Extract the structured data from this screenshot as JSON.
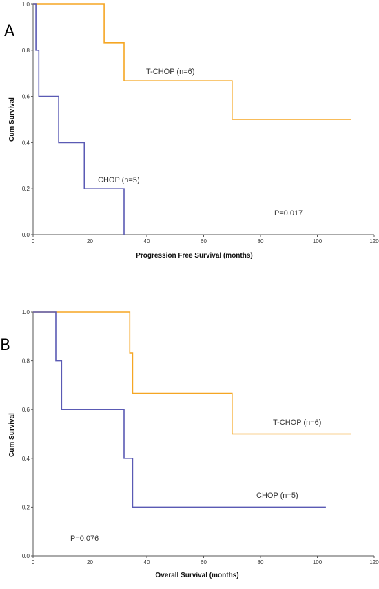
{
  "chart_data": [
    {
      "type": "line",
      "step": true,
      "panel_label": "A",
      "xlabel": "Progression Free Survival (months)",
      "ylabel": "Cum Survival",
      "xlim": [
        0,
        120
      ],
      "ylim": [
        0,
        1.0
      ],
      "x_ticks": [
        "0",
        "20",
        "40",
        "60",
        "80",
        "100",
        "120"
      ],
      "y_ticks": [
        "0.0",
        "0.2",
        "0.4",
        "0.6",
        "0.8",
        "1.0"
      ],
      "grid": false,
      "annotation": "P=0.017",
      "series": [
        {
          "name": "T-CHOP (n=6)",
          "color": "#f5a623",
          "x": [
            0,
            25,
            25,
            32,
            32,
            70,
            70,
            112
          ],
          "y": [
            1.0,
            1.0,
            0.833,
            0.833,
            0.667,
            0.667,
            0.5,
            0.5
          ]
        },
        {
          "name": "CHOP (n=5)",
          "color": "#5a5ab4",
          "x": [
            0,
            1,
            1,
            2,
            2,
            9,
            9,
            18,
            18,
            32,
            32
          ],
          "y": [
            1.0,
            1.0,
            0.8,
            0.8,
            0.6,
            0.6,
            0.4,
            0.4,
            0.2,
            0.2,
            0.0
          ]
        }
      ]
    },
    {
      "type": "line",
      "step": true,
      "panel_label": "B",
      "xlabel": "Overall Survival (months)",
      "ylabel": "Cum Survival",
      "xlim": [
        0,
        120
      ],
      "ylim": [
        0,
        1.0
      ],
      "x_ticks": [
        "0",
        "20",
        "40",
        "60",
        "80",
        "100",
        "120"
      ],
      "y_ticks": [
        "0.0",
        "0.2",
        "0.4",
        "0.6",
        "0.8",
        "1.0"
      ],
      "grid": false,
      "annotation": "P=0.076",
      "series": [
        {
          "name": "T-CHOP (n=6)",
          "color": "#f5a623",
          "x": [
            0,
            34,
            34,
            35,
            35,
            70,
            70,
            112
          ],
          "y": [
            1.0,
            1.0,
            0.833,
            0.833,
            0.667,
            0.667,
            0.5,
            0.5
          ]
        },
        {
          "name": "CHOP (n=5)",
          "color": "#5a5ab4",
          "x": [
            0,
            8,
            8,
            10,
            10,
            32,
            32,
            35,
            35,
            103
          ],
          "y": [
            1.0,
            1.0,
            0.8,
            0.8,
            0.6,
            0.6,
            0.4,
            0.4,
            0.2,
            0.2
          ]
        }
      ]
    }
  ]
}
